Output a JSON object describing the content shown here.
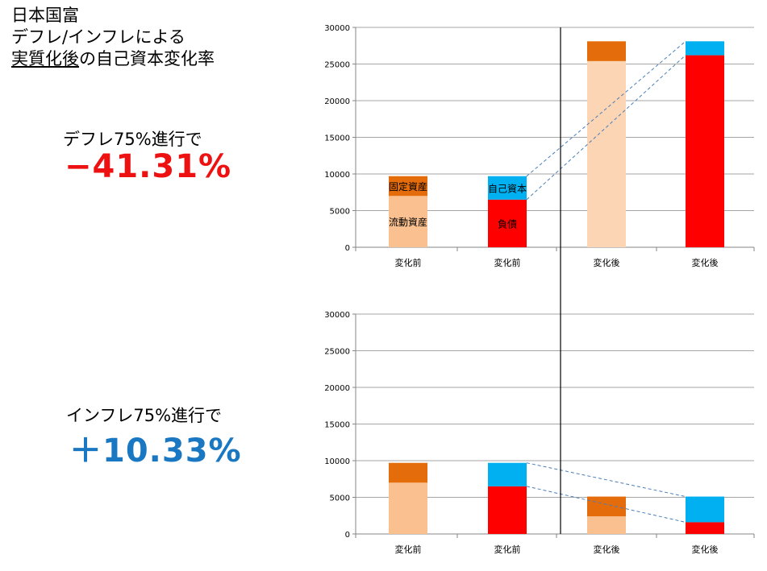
{
  "title": {
    "line1": "日本国富",
    "line2": "デフレ/インフレによる",
    "line3_underlined": "実質化後",
    "line3_rest": "の自己資本変化率"
  },
  "deflation": {
    "label": "デフレ75%進行で",
    "value": "−41.31%",
    "color": "#ee1111"
  },
  "inflation": {
    "label": "インフレ75%進行で",
    "value": "＋10.33%",
    "color": "#1a78c2"
  },
  "colors": {
    "fixed_assets": "#e46c0a",
    "current_assets": "#fac090",
    "current_assets_after_deflation": "#fcd5b5",
    "equity": "#00b0f0",
    "liabilities": "#ff0000",
    "gridline": "#a6a6a6",
    "connector": "#4a7ebb"
  },
  "chart_data": [
    {
      "type": "bar",
      "stacked": true,
      "ylim": [
        0,
        30000
      ],
      "yticks": [
        0,
        5000,
        10000,
        15000,
        20000,
        25000,
        30000
      ],
      "categories": [
        "変化前",
        "変化前",
        "変化後",
        "変化後"
      ],
      "stacks": [
        [
          {
            "key": "current_assets",
            "name": "流動資産",
            "value": 7000
          },
          {
            "key": "fixed_assets",
            "name": "固定資産",
            "value": 2700
          }
        ],
        [
          {
            "key": "liabilities",
            "name": "負債",
            "value": 6500
          },
          {
            "key": "equity",
            "name": "自己資本",
            "value": 3200
          }
        ],
        [
          {
            "key": "current_assets_after_deflation",
            "value": 25400
          },
          {
            "key": "fixed_assets",
            "value": 2700
          }
        ],
        [
          {
            "key": "liabilities",
            "value": 26200
          },
          {
            "key": "equity",
            "value": 1900
          }
        ]
      ],
      "grid": true
    },
    {
      "type": "bar",
      "stacked": true,
      "ylim": [
        0,
        30000
      ],
      "yticks": [
        0,
        5000,
        10000,
        15000,
        20000,
        25000,
        30000
      ],
      "categories": [
        "変化前",
        "変化前",
        "変化後",
        "変化後"
      ],
      "stacks": [
        [
          {
            "key": "current_assets",
            "value": 7000
          },
          {
            "key": "fixed_assets",
            "value": 2700
          }
        ],
        [
          {
            "key": "liabilities",
            "value": 6500
          },
          {
            "key": "equity",
            "value": 3200
          }
        ],
        [
          {
            "key": "current_assets",
            "value": 2400
          },
          {
            "key": "fixed_assets",
            "value": 2700
          }
        ],
        [
          {
            "key": "liabilities",
            "value": 1600
          },
          {
            "key": "equity",
            "value": 3500
          }
        ]
      ],
      "grid": true
    }
  ]
}
